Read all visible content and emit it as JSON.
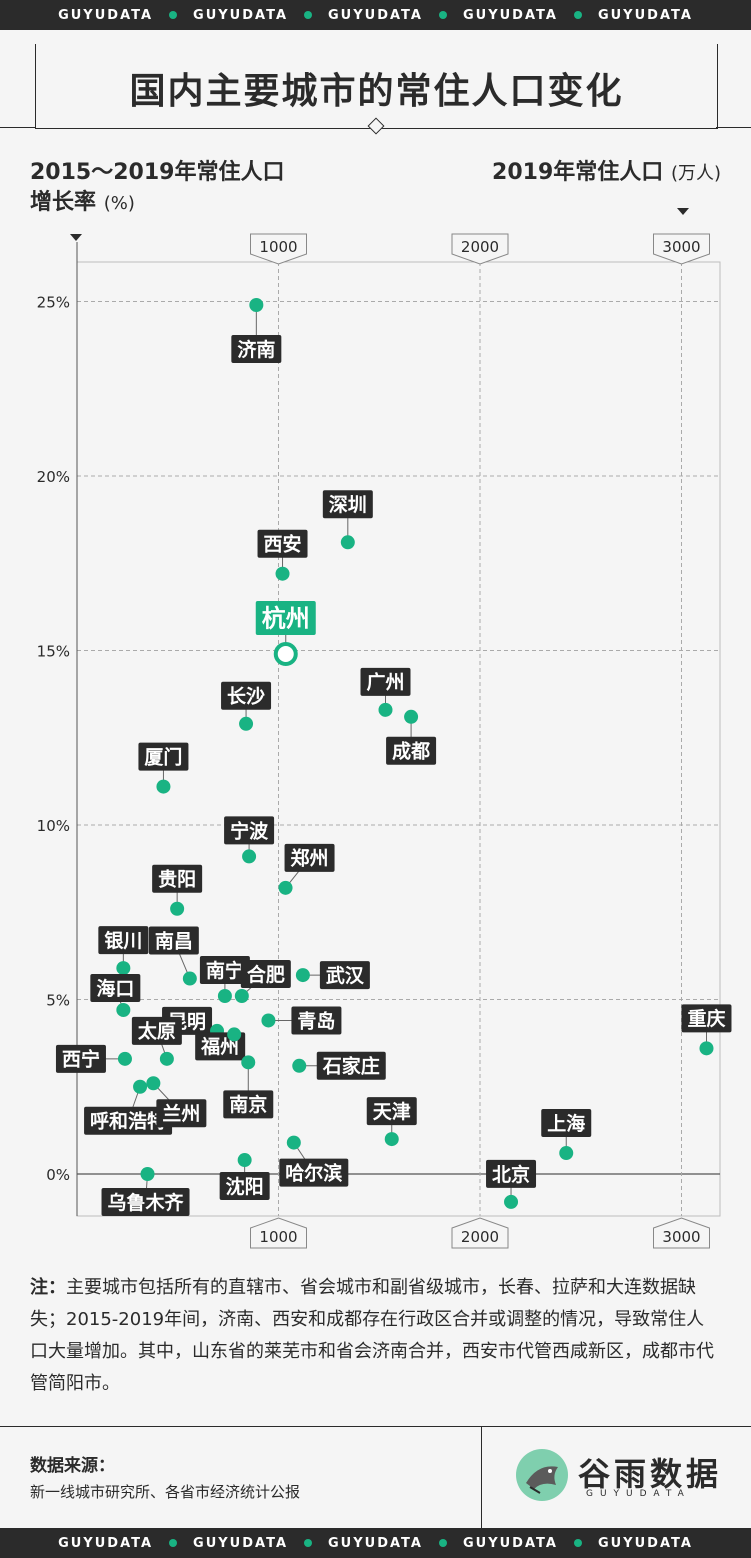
{
  "brand_band": [
    "GUYUDATA",
    "GUYUDATA",
    "GUYUDATA",
    "GUYUDATA",
    "GUYUDATA"
  ],
  "title": "国内主要城市的常住人口变化",
  "legend": {
    "y_label_line1": "2015～2019年常住人口",
    "y_label_line2": "增长率",
    "y_unit": "(%)",
    "x_label": "2019年常住人口",
    "x_unit": "(万人)"
  },
  "colors": {
    "accent": "#19b383",
    "dark": "#2b2b2b",
    "background": "#f5f5f5"
  },
  "chart_data": {
    "type": "scatter",
    "title": "国内主要城市的常住人口变化",
    "xlabel": "2019年常住人口(万人)",
    "ylabel": "2015～2019年常住人口增长率(%)",
    "xlim": [
      0,
      3200
    ],
    "ylim": [
      -1.2,
      26.2
    ],
    "x_ticks": [
      "1000",
      "2000",
      "3000"
    ],
    "x_tick_values": [
      1000,
      2000,
      3000
    ],
    "y_ticks": [
      "25%",
      "20%",
      "15%",
      "10%",
      "5%",
      "0%"
    ],
    "y_tick_values": [
      25,
      20,
      15,
      10,
      5,
      0
    ],
    "highlight": "杭州",
    "points": [
      {
        "name": "济南",
        "x": 890,
        "y": 24.9
      },
      {
        "name": "深圳",
        "x": 1344,
        "y": 18.1
      },
      {
        "name": "西安",
        "x": 1020,
        "y": 17.2
      },
      {
        "name": "杭州",
        "x": 1036,
        "y": 14.9
      },
      {
        "name": "广州",
        "x": 1531,
        "y": 13.3
      },
      {
        "name": "成都",
        "x": 1658,
        "y": 13.1
      },
      {
        "name": "长沙",
        "x": 839,
        "y": 12.9
      },
      {
        "name": "厦门",
        "x": 429,
        "y": 11.1
      },
      {
        "name": "宁波",
        "x": 854,
        "y": 9.1
      },
      {
        "name": "郑州",
        "x": 1035,
        "y": 8.2
      },
      {
        "name": "贵阳",
        "x": 497,
        "y": 7.6
      },
      {
        "name": "银川",
        "x": 230,
        "y": 5.9
      },
      {
        "name": "南昌",
        "x": 560,
        "y": 5.6
      },
      {
        "name": "南宁",
        "x": 734,
        "y": 5.1
      },
      {
        "name": "合肥",
        "x": 818,
        "y": 5.1
      },
      {
        "name": "武汉",
        "x": 1121,
        "y": 5.7
      },
      {
        "name": "海口",
        "x": 230,
        "y": 4.7
      },
      {
        "name": "昆明",
        "x": 695,
        "y": 4.1
      },
      {
        "name": "青岛",
        "x": 950,
        "y": 4.4
      },
      {
        "name": "重庆",
        "x": 3124,
        "y": 3.6
      },
      {
        "name": "西宁",
        "x": 238,
        "y": 3.3
      },
      {
        "name": "太原",
        "x": 446,
        "y": 3.3
      },
      {
        "name": "福州",
        "x": 780,
        "y": 4.0
      },
      {
        "name": "南京",
        "x": 850,
        "y": 3.2
      },
      {
        "name": "石家庄",
        "x": 1103,
        "y": 3.1
      },
      {
        "name": "呼和浩特",
        "x": 313,
        "y": 2.5
      },
      {
        "name": "兰州",
        "x": 379,
        "y": 2.6
      },
      {
        "name": "天津",
        "x": 1562,
        "y": 1.0
      },
      {
        "name": "上海",
        "x": 2428,
        "y": 0.6
      },
      {
        "name": "哈尔滨",
        "x": 1076,
        "y": 0.9
      },
      {
        "name": "沈阳",
        "x": 832,
        "y": 0.4
      },
      {
        "name": "乌鲁木齐",
        "x": 350,
        "y": 0.0
      },
      {
        "name": "北京",
        "x": 2154,
        "y": -0.8
      }
    ]
  },
  "note": {
    "label": "注：",
    "text": "主要城市包括所有的直辖市、省会城市和副省级城市，长春、拉萨和大连数据缺失；2015-2019年间，济南、西安和成都存在行政区合并或调整的情况，导致常住人口大量增加。其中，山东省的莱芜市和省会济南合并，西安市代管西咸新区，成都市代管简阳市。"
  },
  "source": {
    "label": "数据来源：",
    "text": "新一线城市研究所、各省市经济统计公报"
  },
  "brand": {
    "name": "谷雨数据",
    "sub": "GUYUDATA"
  }
}
